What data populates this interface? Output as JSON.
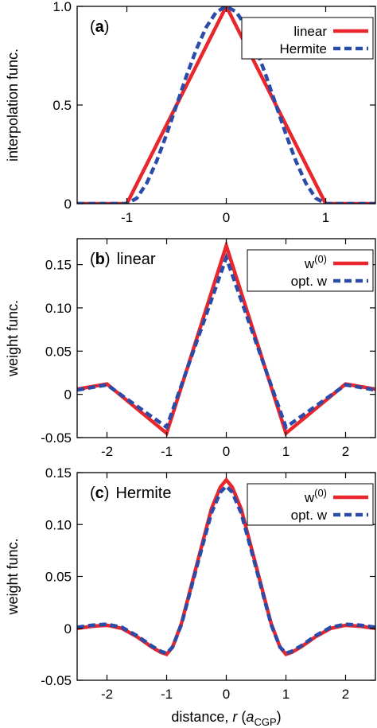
{
  "chart_data": [
    {
      "type": "line",
      "panel_label": "(a)",
      "panel_title": "",
      "ylabel": "interpolation func.",
      "xlabel": "",
      "xlim": [
        -1.5,
        1.5
      ],
      "ylim": [
        0,
        1.0
      ],
      "xticks": [
        -1,
        0,
        1
      ],
      "xtick_labels": [
        "-1",
        "0",
        "1"
      ],
      "yticks": [
        0,
        0.5,
        1.0
      ],
      "ytick_labels": [
        "0",
        "0.5",
        "1.0"
      ],
      "grid": false,
      "legend_position": "top-right",
      "series": [
        {
          "name": "linear",
          "color": "#e8262b",
          "dash": "solid",
          "x": [
            -1.5,
            -1,
            0,
            1,
            1.5
          ],
          "y": [
            0,
            0,
            1,
            0,
            0
          ]
        },
        {
          "name": "Hermite",
          "color": "#2b4ba8",
          "dash": "dashed",
          "x": [
            -1.5,
            -1.0,
            -0.9,
            -0.8,
            -0.7,
            -0.6,
            -0.5,
            -0.4,
            -0.3,
            -0.2,
            -0.1,
            0,
            0.1,
            0.2,
            0.3,
            0.4,
            0.5,
            0.6,
            0.7,
            0.8,
            0.9,
            1.0,
            1.5
          ],
          "y": [
            0,
            0,
            0.028,
            0.104,
            0.216,
            0.352,
            0.5,
            0.648,
            0.784,
            0.896,
            0.972,
            1.0,
            0.972,
            0.896,
            0.784,
            0.648,
            0.5,
            0.352,
            0.216,
            0.104,
            0.028,
            0,
            0
          ]
        }
      ]
    },
    {
      "type": "line",
      "panel_label": "(b)",
      "panel_title": "linear",
      "ylabel": "weight func.",
      "xlabel": "",
      "xlim": [
        -2.5,
        2.5
      ],
      "ylim": [
        -0.05,
        0.18
      ],
      "xticks": [
        -2,
        -1,
        0,
        1,
        2
      ],
      "xtick_labels": [
        "-2",
        "-1",
        "0",
        "1",
        "2"
      ],
      "yticks": [
        -0.05,
        0,
        0.05,
        0.1,
        0.15
      ],
      "ytick_labels": [
        "-0.05",
        "0",
        "0.05",
        "0.10",
        "0.15"
      ],
      "grid": false,
      "legend_position": "top-right",
      "series": [
        {
          "name": "w",
          "name_superscript": "(0)",
          "color": "#e8262b",
          "dash": "solid",
          "x": [
            -2.5,
            -2,
            -1,
            0,
            1,
            2,
            2.5
          ],
          "y": [
            0.006,
            0.012,
            -0.045,
            0.172,
            -0.045,
            0.012,
            0.006
          ]
        },
        {
          "name": "opt. w",
          "color": "#2b4ba8",
          "dash": "dashed",
          "x": [
            -2.5,
            -2,
            -1,
            0,
            1,
            2,
            2.5
          ],
          "y": [
            0.005,
            0.011,
            -0.038,
            0.158,
            -0.038,
            0.011,
            0.005
          ]
        }
      ]
    },
    {
      "type": "line",
      "panel_label": "(c)",
      "panel_title": "Hermite",
      "ylabel": "weight func.",
      "xlabel": "distance, r (a",
      "xlabel_sub": "CGP",
      "xlabel_end": ")",
      "xlim": [
        -2.5,
        2.5
      ],
      "ylim": [
        -0.05,
        0.15
      ],
      "xticks": [
        -2,
        -1,
        0,
        1,
        2
      ],
      "xtick_labels": [
        "-2",
        "-1",
        "0",
        "1",
        "2"
      ],
      "yticks": [
        -0.05,
        0,
        0.05,
        0.1,
        0.15
      ],
      "ytick_labels": [
        "-0.05",
        "0",
        "0.05",
        "0.10",
        "0.15"
      ],
      "grid": false,
      "legend_position": "top-right",
      "series": [
        {
          "name": "w",
          "name_superscript": "(0)",
          "color": "#e8262b",
          "dash": "solid",
          "x": [
            -2.5,
            -2.25,
            -2.0,
            -1.75,
            -1.5,
            -1.25,
            -1.1,
            -1.0,
            -0.9,
            -0.75,
            -0.5,
            -0.25,
            -0.1,
            0,
            0.1,
            0.25,
            0.5,
            0.75,
            0.9,
            1.0,
            1.1,
            1.25,
            1.5,
            1.75,
            2.0,
            2.25,
            2.5
          ],
          "y": [
            0.0,
            0.002,
            0.003,
            0.0,
            -0.008,
            -0.018,
            -0.023,
            -0.025,
            -0.018,
            0.005,
            0.06,
            0.115,
            0.136,
            0.143,
            0.136,
            0.115,
            0.06,
            0.005,
            -0.018,
            -0.025,
            -0.023,
            -0.018,
            -0.008,
            0.0,
            0.003,
            0.002,
            0.0
          ]
        },
        {
          "name": "opt. w",
          "color": "#2b4ba8",
          "dash": "dashed",
          "x": [
            -2.5,
            -2.25,
            -2.0,
            -1.75,
            -1.5,
            -1.25,
            -1.1,
            -1.0,
            -0.9,
            -0.75,
            -0.5,
            -0.25,
            -0.1,
            0,
            0.1,
            0.25,
            0.5,
            0.75,
            0.9,
            1.0,
            1.1,
            1.25,
            1.5,
            1.75,
            2.0,
            2.25,
            2.5
          ],
          "y": [
            0.001,
            0.003,
            0.004,
            0.001,
            -0.007,
            -0.017,
            -0.022,
            -0.024,
            -0.018,
            0.004,
            0.058,
            0.111,
            0.131,
            0.137,
            0.131,
            0.111,
            0.058,
            0.004,
            -0.018,
            -0.024,
            -0.022,
            -0.017,
            -0.007,
            0.001,
            0.004,
            0.003,
            0.001
          ]
        }
      ]
    }
  ]
}
